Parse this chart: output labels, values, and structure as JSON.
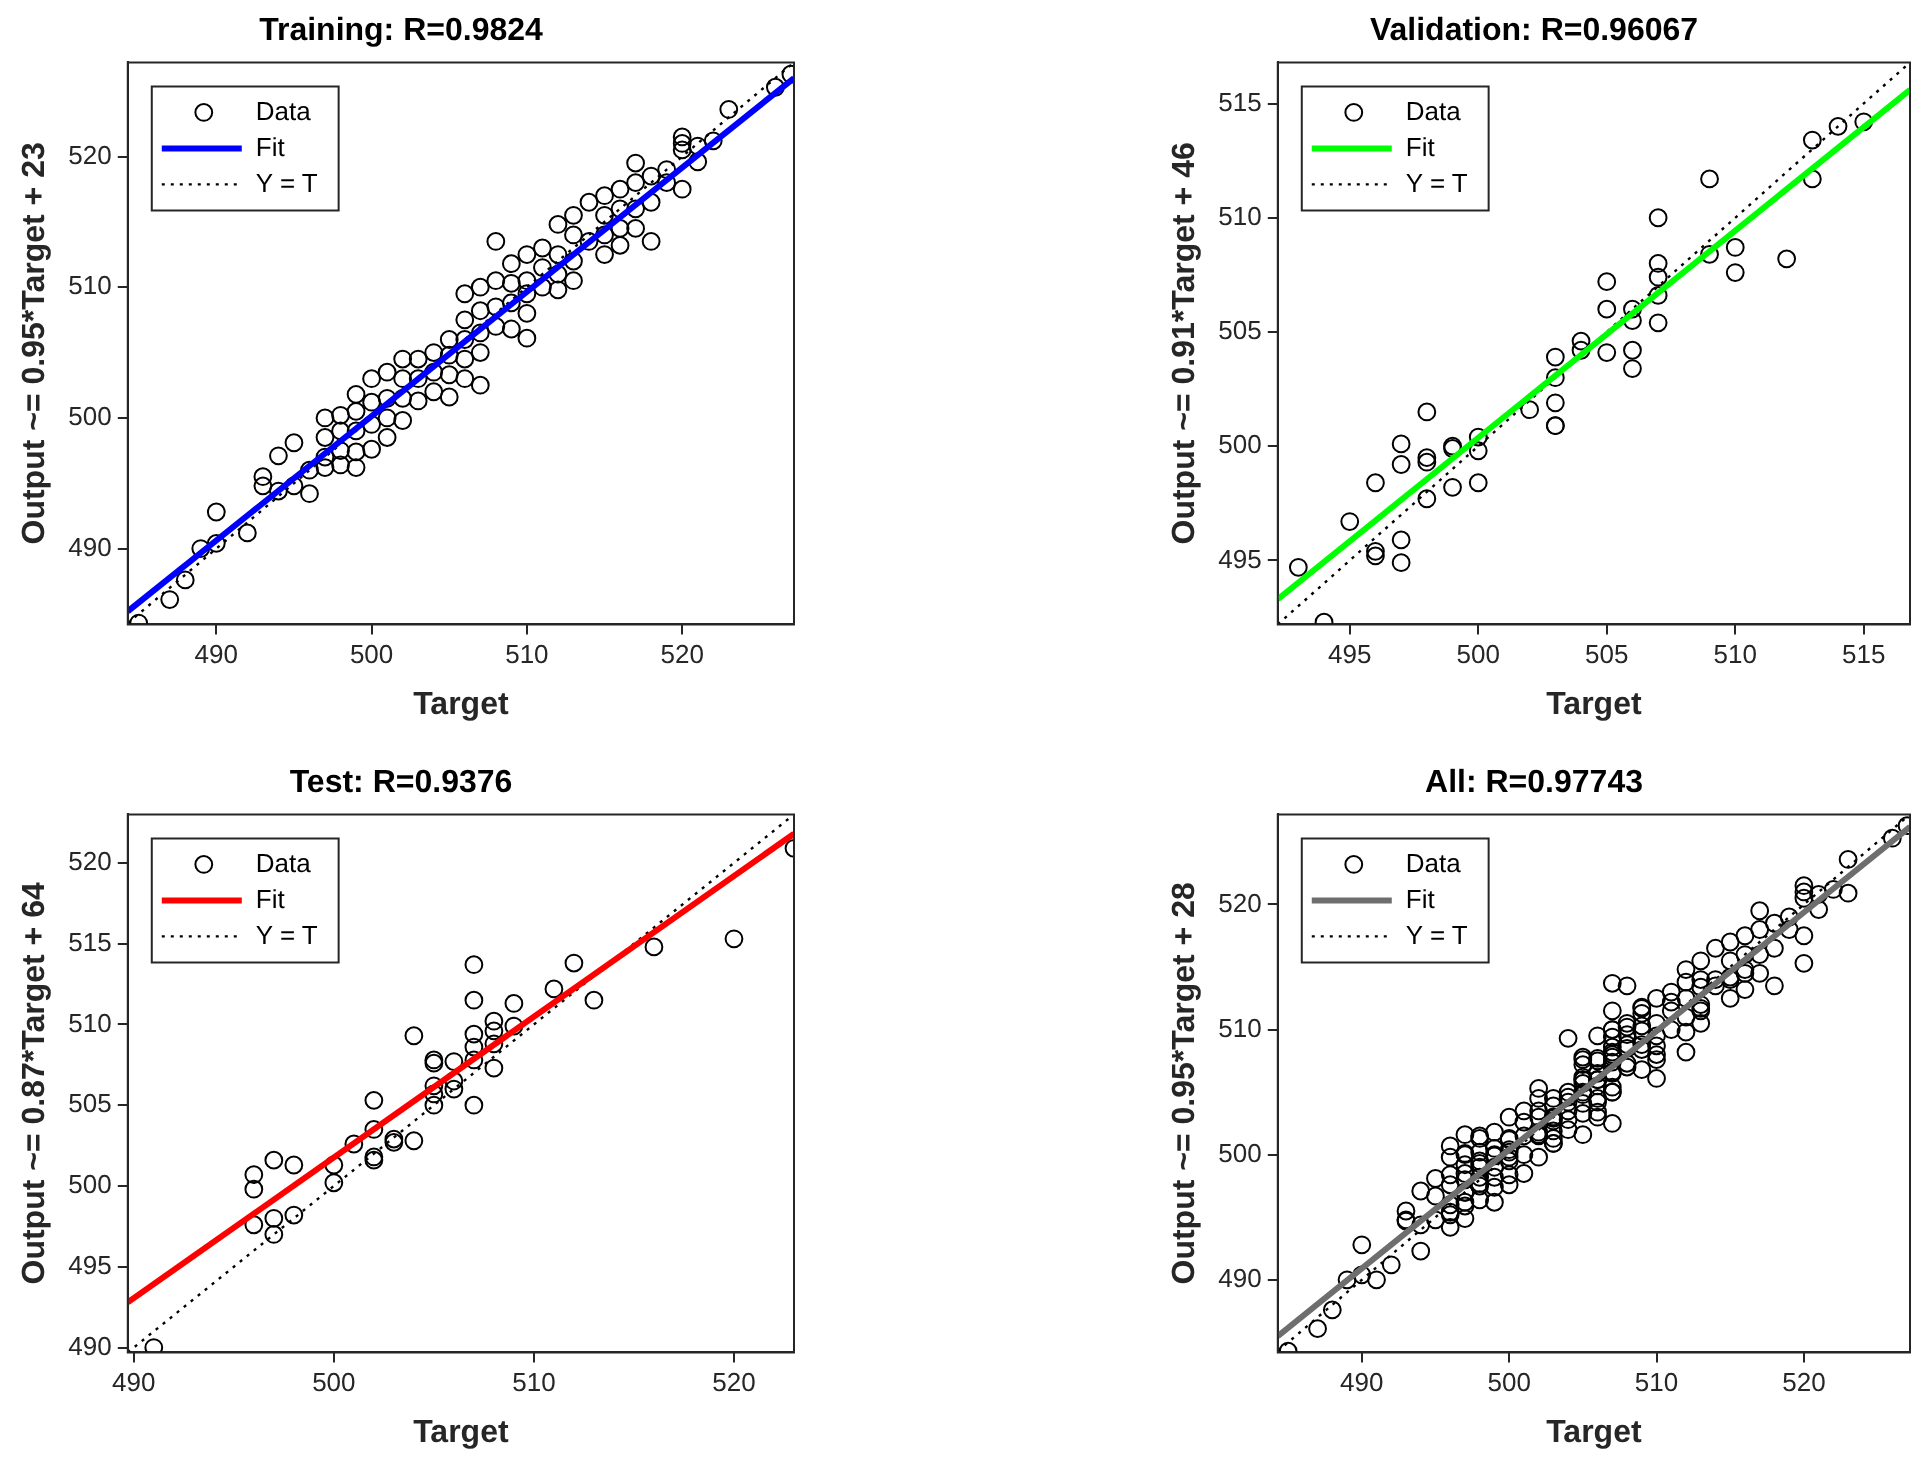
{
  "chart_data": [
    {
      "type": "scatter",
      "title": "Training: R=0.9824",
      "xlabel": "Target",
      "ylabel": "Output ~= 0.95*Target + 23",
      "xlim": [
        484.3,
        527.2
      ],
      "ylim": [
        484.2,
        527.2
      ],
      "xticks": [
        490,
        500,
        510,
        520
      ],
      "yticks": [
        490,
        500,
        510,
        520
      ],
      "grid": false,
      "legend": "top left",
      "series": [
        {
          "name": "Data",
          "type": "scatter",
          "marker": "circle",
          "color": "#000000",
          "x": [
            485,
            487,
            488,
            489,
            490,
            490,
            492,
            493,
            493,
            494,
            494,
            495,
            495,
            496,
            496,
            497,
            497,
            497,
            497,
            498,
            498,
            498,
            498,
            499,
            499,
            499,
            499,
            499,
            500,
            500,
            500,
            500,
            501,
            501,
            501,
            501,
            502,
            502,
            502,
            502,
            503,
            503,
            503,
            504,
            504,
            504,
            505,
            505,
            505,
            505,
            506,
            506,
            506,
            506,
            506,
            507,
            507,
            507,
            507,
            507,
            508,
            508,
            508,
            508,
            509,
            509,
            509,
            509,
            510,
            510,
            510,
            510,
            510,
            511,
            511,
            511,
            512,
            512,
            512,
            512,
            513,
            513,
            513,
            513,
            514,
            514,
            515,
            515,
            515,
            515,
            516,
            516,
            516,
            516,
            517,
            517,
            517,
            517,
            518,
            518,
            518,
            519,
            519,
            520,
            520,
            520,
            520,
            521,
            521,
            522,
            523,
            526,
            527
          ],
          "values": [
            484.3,
            486.1,
            487.6,
            490,
            492.8,
            490.4,
            491.2,
            495.5,
            494.8,
            497.1,
            494.4,
            498.1,
            494.8,
            496,
            494.2,
            500,
            498.5,
            497,
            496.2,
            500.2,
            499,
            497.5,
            496.4,
            501.8,
            500.5,
            499,
            497.4,
            496.2,
            503,
            501.2,
            499.5,
            497.6,
            503.5,
            501.5,
            500,
            498.5,
            504.5,
            503,
            501.5,
            499.8,
            504.5,
            503,
            501.3,
            505,
            503.5,
            502,
            506,
            504.8,
            503.3,
            501.6,
            509.5,
            507.5,
            506,
            504.5,
            503,
            510,
            508.2,
            506.5,
            505,
            502.5,
            513.5,
            510.5,
            508.5,
            507,
            511.8,
            510.3,
            508.8,
            506.8,
            512.5,
            510.5,
            509.5,
            508,
            506.1,
            513,
            511.5,
            510,
            514.8,
            512.5,
            511,
            509.8,
            515.5,
            514,
            512,
            510.5,
            516.5,
            513.5,
            517,
            515.5,
            514,
            512.5,
            517.5,
            516,
            514.5,
            513.2,
            519.5,
            518,
            516,
            514.5,
            518.5,
            516.5,
            513.5,
            519,
            518,
            521.5,
            521,
            520.5,
            517.5,
            520.8,
            519.6,
            521.2,
            523.6,
            525.3,
            526.3
          ]
        },
        {
          "name": "Fit",
          "type": "line",
          "line_style": "solid",
          "color": "#0000ff",
          "x": [
            484.3,
            527.2
          ],
          "values": [
            485.2,
            526.0
          ]
        },
        {
          "name": "Y = T",
          "type": "line",
          "line_style": "dotted",
          "color": "#000000",
          "x": [
            484.3,
            527.2
          ],
          "values": [
            484.3,
            527.2
          ]
        }
      ]
    },
    {
      "type": "scatter",
      "title": "Validation: R=0.96067",
      "xlabel": "Target",
      "ylabel": "Output ~= 0.91*Target + 46",
      "xlim": [
        492.2,
        516.8
      ],
      "ylim": [
        492.2,
        516.8
      ],
      "xticks": [
        495,
        500,
        505,
        510,
        515
      ],
      "yticks": [
        495,
        500,
        505,
        510,
        515
      ],
      "grid": false,
      "legend": "top left",
      "series": [
        {
          "name": "Data",
          "type": "scatter",
          "marker": "circle",
          "color": "#000000",
          "x": [
            493,
            494,
            495,
            496,
            496,
            496,
            497,
            497,
            497,
            497,
            498,
            498,
            498,
            498,
            499,
            499,
            499,
            500,
            500,
            500,
            502,
            503,
            503,
            503,
            503,
            503,
            504,
            504,
            505,
            505,
            505,
            506,
            506,
            506,
            506,
            507,
            507,
            507,
            507,
            507,
            509,
            509,
            510,
            510,
            512,
            513,
            513,
            514,
            515
          ],
          "values": [
            494.7,
            492.3,
            496.7,
            498.4,
            495.4,
            495.2,
            500.1,
            499.2,
            495.9,
            494.9,
            501.5,
            499.5,
            499.3,
            497.7,
            500,
            499.9,
            498.2,
            500.4,
            499.8,
            498.4,
            501.6,
            503.9,
            503,
            501.9,
            500.9,
            500.9,
            504.6,
            504.2,
            507.2,
            506,
            504.1,
            506,
            505.5,
            504.2,
            503.4,
            510,
            508,
            507.4,
            506.6,
            505.4,
            511.7,
            508.4,
            508.7,
            507.6,
            508.2,
            513.4,
            511.7,
            514,
            514.2
          ]
        },
        {
          "name": "Fit",
          "type": "line",
          "line_style": "solid",
          "color": "#00ff00",
          "x": [
            492.2,
            516.8
          ],
          "values": [
            493.3,
            515.6
          ]
        },
        {
          "name": "Y = T",
          "type": "line",
          "line_style": "dotted",
          "color": "#000000",
          "x": [
            492.2,
            516.8
          ],
          "values": [
            492.2,
            516.8
          ]
        }
      ]
    },
    {
      "type": "scatter",
      "title": "Test: R=0.9376",
      "xlabel": "Target",
      "ylabel": "Output ~= 0.87*Target + 64",
      "xlim": [
        489.7,
        523
      ],
      "ylim": [
        489.7,
        523
      ],
      "xticks": [
        490,
        500,
        510,
        520
      ],
      "yticks": [
        490,
        495,
        500,
        505,
        510,
        515,
        520
      ],
      "grid": false,
      "legend": "top left",
      "series": [
        {
          "name": "Data",
          "type": "scatter",
          "marker": "circle",
          "color": "#000000",
          "x": [
            491,
            496,
            496,
            496,
            497,
            497,
            497,
            498,
            498,
            500,
            500,
            501,
            502,
            502,
            502,
            502,
            503,
            503,
            504,
            504,
            505,
            505,
            505,
            505,
            505,
            506,
            506,
            506,
            507,
            507,
            507,
            507,
            507,
            507,
            508,
            508,
            508,
            508,
            509,
            509,
            511,
            512,
            513,
            516,
            520,
            523
          ],
          "values": [
            490,
            500.7,
            499.8,
            497.6,
            501.6,
            498,
            497,
            501.3,
            498.2,
            501.3,
            500.2,
            502.6,
            505.3,
            503.5,
            501.8,
            501.6,
            502.9,
            502.7,
            502.8,
            509.3,
            507.8,
            507.6,
            506.2,
            505.7,
            505,
            507.7,
            506.5,
            506,
            513.7,
            511.5,
            509.4,
            508.6,
            507.8,
            505,
            510.2,
            509.6,
            508.8,
            507.3,
            511.3,
            509.9,
            512.2,
            513.8,
            511.5,
            514.8,
            515.3,
            520.9
          ]
        },
        {
          "name": "Fit",
          "type": "line",
          "line_style": "solid",
          "color": "#ff0000",
          "x": [
            489.7,
            523
          ],
          "values": [
            492.8,
            521.8
          ]
        },
        {
          "name": "Y = T",
          "type": "line",
          "line_style": "dotted",
          "color": "#000000",
          "x": [
            489.7,
            523
          ],
          "values": [
            489.7,
            523
          ]
        }
      ]
    },
    {
      "type": "scatter",
      "title": "All: R=0.97743",
      "xlabel": "Target",
      "ylabel": "Output ~= 0.95*Target + 28",
      "xlim": [
        484.3,
        527.2
      ],
      "ylim": [
        484.2,
        527.2
      ],
      "xticks": [
        490,
        500,
        510,
        520
      ],
      "yticks": [
        490,
        500,
        510,
        520
      ],
      "grid": false,
      "legend": "top left",
      "series": [
        {
          "name": "Data",
          "type": "scatter",
          "marker": "circle",
          "color": "#000000",
          "x": [
            485,
            487,
            488,
            489,
            490,
            490,
            492,
            493,
            493,
            494,
            494,
            495,
            495,
            496,
            496,
            497,
            497,
            497,
            497,
            498,
            498,
            498,
            498,
            499,
            499,
            499,
            499,
            499,
            500,
            500,
            500,
            500,
            501,
            501,
            501,
            501,
            502,
            502,
            502,
            502,
            503,
            503,
            503,
            504,
            504,
            504,
            505,
            505,
            505,
            505,
            506,
            506,
            506,
            506,
            506,
            507,
            507,
            507,
            507,
            507,
            508,
            508,
            508,
            508,
            509,
            509,
            509,
            509,
            510,
            510,
            510,
            510,
            510,
            511,
            511,
            511,
            512,
            512,
            512,
            512,
            513,
            513,
            513,
            513,
            514,
            514,
            515,
            515,
            515,
            515,
            516,
            516,
            516,
            516,
            517,
            517,
            517,
            517,
            518,
            518,
            518,
            519,
            519,
            520,
            520,
            520,
            520,
            521,
            521,
            522,
            523,
            526,
            527,
            493,
            494,
            495,
            496,
            496,
            496,
            497,
            497,
            497,
            497,
            498,
            498,
            498,
            498,
            499,
            499,
            499,
            500,
            500,
            500,
            502,
            503,
            503,
            503,
            503,
            503,
            504,
            504,
            505,
            505,
            505,
            506,
            506,
            506,
            506,
            507,
            507,
            507,
            507,
            507,
            509,
            509,
            510,
            510,
            512,
            513,
            513,
            514,
            515,
            491,
            496,
            496,
            496,
            497,
            497,
            497,
            498,
            498,
            500,
            500,
            501,
            502,
            502,
            502,
            502,
            503,
            503,
            504,
            504,
            505,
            505,
            505,
            505,
            505,
            506,
            506,
            506,
            507,
            507,
            507,
            507,
            507,
            507,
            508,
            508,
            508,
            508,
            509,
            509,
            511,
            512,
            513,
            516,
            520,
            523
          ],
          "values": [
            484.3,
            486.1,
            487.6,
            490,
            492.8,
            490.4,
            491.2,
            495.5,
            494.8,
            497.1,
            494.4,
            498.1,
            494.8,
            496,
            494.2,
            500,
            498.5,
            497,
            496.2,
            500.2,
            499,
            497.5,
            496.4,
            501.8,
            500.5,
            499,
            497.4,
            496.2,
            503,
            501.2,
            499.5,
            497.6,
            503.5,
            501.5,
            500,
            498.5,
            504.5,
            503,
            501.5,
            499.8,
            504.5,
            503,
            501.3,
            505,
            503.5,
            502,
            506,
            504.8,
            503.3,
            501.6,
            509.5,
            507.5,
            506,
            504.5,
            503,
            510,
            508.2,
            506.5,
            505,
            502.5,
            513.5,
            510.5,
            508.5,
            507,
            511.8,
            510.3,
            508.8,
            506.8,
            512.5,
            510.5,
            509.5,
            508,
            506.1,
            513,
            511.5,
            510,
            514.8,
            512.5,
            511,
            509.8,
            515.5,
            514,
            512,
            510.5,
            516.5,
            513.5,
            517,
            515.5,
            514,
            512.5,
            517.5,
            516,
            514.5,
            513.2,
            519.5,
            518,
            516,
            514.5,
            518.5,
            516.5,
            513.5,
            519,
            518,
            521.5,
            521,
            520.5,
            517.5,
            520.8,
            519.6,
            521.2,
            523.6,
            525.3,
            526.3,
            494.7,
            492.3,
            496.7,
            498.4,
            495.4,
            495.2,
            500.1,
            499.2,
            495.9,
            494.9,
            501.5,
            499.5,
            499.3,
            497.7,
            500,
            499.9,
            498.2,
            500.4,
            499.8,
            498.4,
            501.6,
            503.9,
            503,
            501.9,
            500.9,
            500.9,
            504.6,
            504.2,
            507.2,
            506,
            504.1,
            506,
            505.5,
            504.2,
            503.4,
            510,
            508,
            507.4,
            506.6,
            505.4,
            511.7,
            508.4,
            508.7,
            507.6,
            508.2,
            513.4,
            511.7,
            514,
            514.2,
            490,
            500.7,
            499.8,
            497.6,
            501.6,
            498,
            497,
            501.3,
            498.2,
            501.3,
            500.2,
            502.6,
            505.3,
            503.5,
            501.8,
            501.6,
            502.9,
            502.7,
            502.8,
            509.3,
            507.8,
            507.6,
            506.2,
            505.7,
            505,
            507.7,
            506.5,
            506,
            513.7,
            511.5,
            509.4,
            508.6,
            507.8,
            505,
            510.2,
            509.6,
            508.8,
            507.3,
            511.3,
            509.9,
            512.2,
            513.8,
            511.5,
            514.8,
            515.3,
            520.9
          ]
        },
        {
          "name": "Fit",
          "type": "line",
          "line_style": "solid",
          "color": "#6e6e6e",
          "x": [
            484.3,
            527.2
          ],
          "values": [
            485.5,
            526.2
          ]
        },
        {
          "name": "Y = T",
          "type": "line",
          "line_style": "dotted",
          "color": "#000000",
          "x": [
            484.3,
            527.2
          ],
          "values": [
            484.3,
            527.2
          ]
        }
      ]
    }
  ]
}
